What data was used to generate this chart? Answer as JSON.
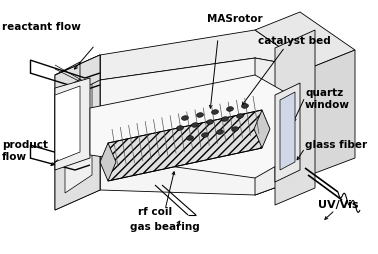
{
  "background_color": "#ffffff",
  "line_color": "#000000",
  "figsize": [
    3.78,
    2.54
  ],
  "dpi": 100,
  "labels": {
    "reactant_flow": "reactant flow",
    "product_flow": "product\nflow",
    "MAS_rotor": "MASrotor",
    "catalyst_bed": "catalyst bed",
    "quartz_window": "quartz\nwindow",
    "glass_fiber": "glass fiber",
    "rf_coil": "rf coil",
    "gas_bearing": "gas bearing",
    "UV_Vis": "UV/Vis"
  }
}
